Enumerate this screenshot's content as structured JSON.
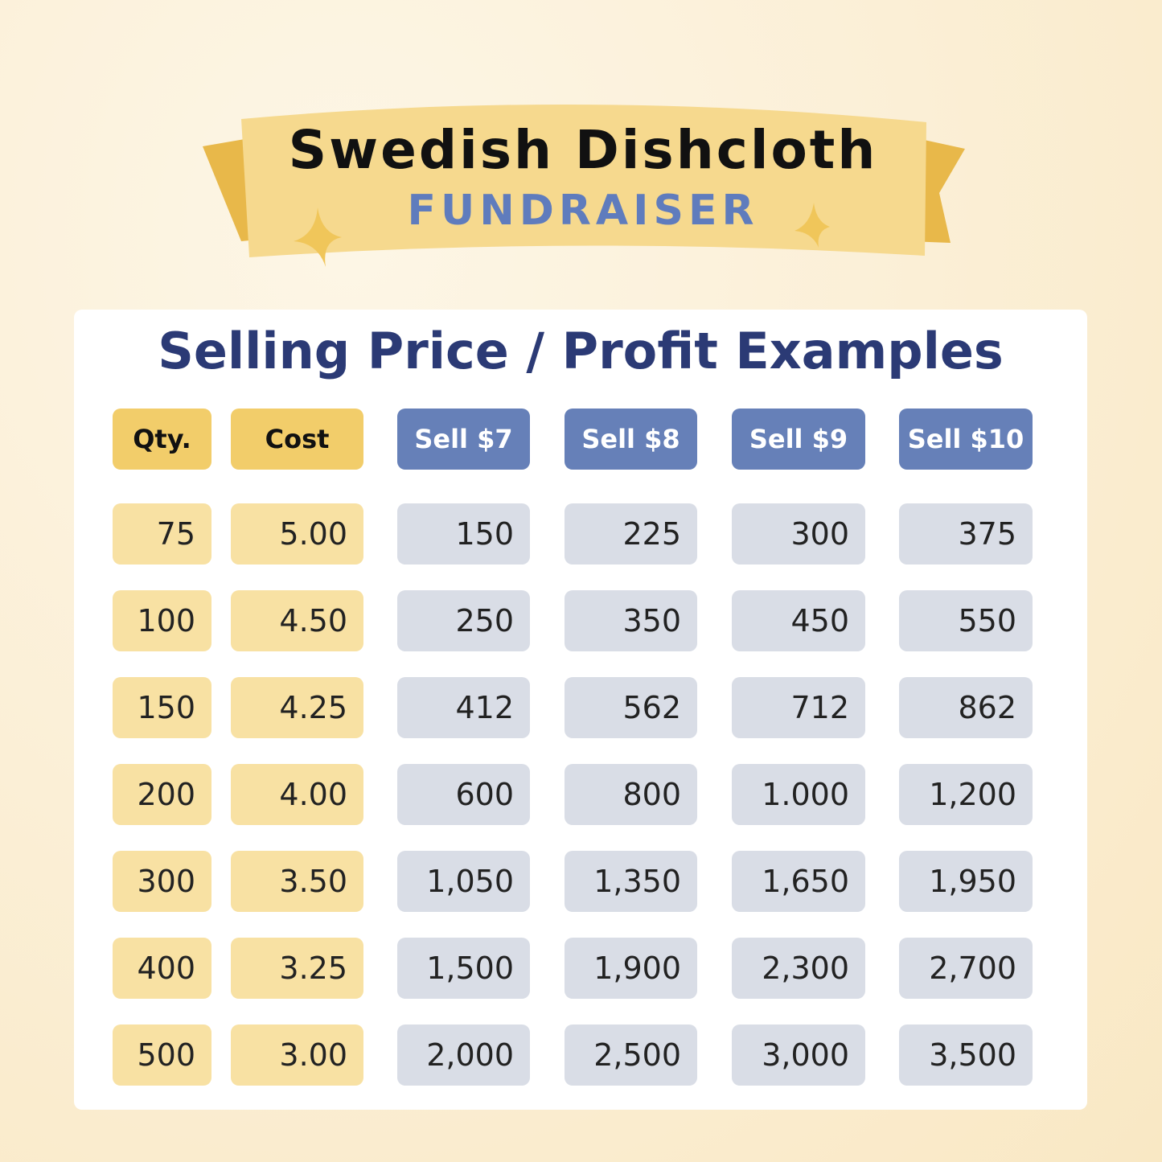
{
  "header": {
    "title": "Swedish Dishcloth",
    "subtitle": "FUNDRAISER"
  },
  "table": {
    "title": "Selling Price / Profit Examples",
    "columns": [
      "Qty.",
      "Cost",
      "Sell  $7",
      "Sell  $8",
      "Sell $9",
      "Sell $10"
    ],
    "rows": [
      [
        "75",
        "5.00",
        "150",
        "225",
        "300",
        "375"
      ],
      [
        "100",
        "4.50",
        "250",
        "350",
        "450",
        "550"
      ],
      [
        "150",
        "4.25",
        "412",
        "562",
        "712",
        "862"
      ],
      [
        "200",
        "4.00",
        "600",
        "800",
        "1.000",
        "1,200"
      ],
      [
        "300",
        "3.50",
        "1,050",
        "1,350",
        "1,650",
        "1,950"
      ],
      [
        "400",
        "3.25",
        "1,500",
        "1,900",
        "2,300",
        "2,700"
      ],
      [
        "500",
        "3.00",
        "2,000",
        "2,500",
        "3,000",
        "3,500"
      ]
    ]
  }
}
